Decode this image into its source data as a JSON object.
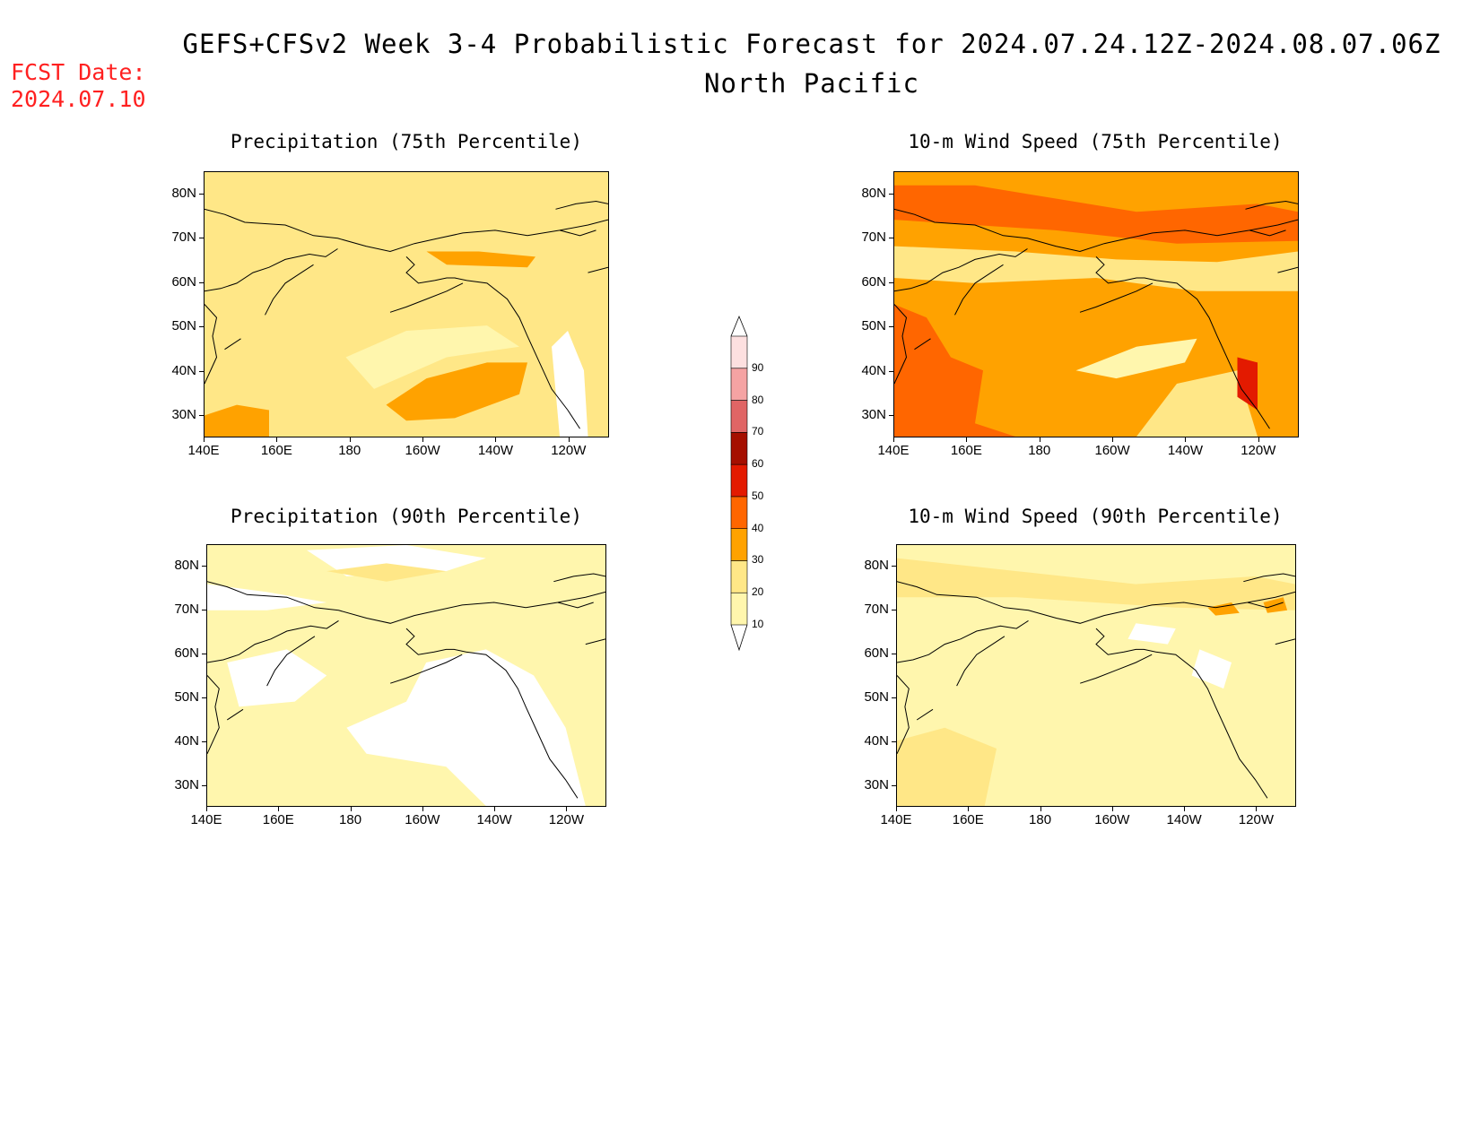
{
  "header": {
    "title": "GEFS+CFSv2 Week 3-4 Probabilistic Forecast for 2024.07.24.12Z-2024.08.07.06Z",
    "subtitle": "North Pacific",
    "fcst_label": "FCST Date:",
    "fcst_date": "2024.07.10"
  },
  "axes": {
    "lat_labels": [
      "80N",
      "70N",
      "60N",
      "50N",
      "40N",
      "30N"
    ],
    "lon_labels": [
      "140E",
      "160E",
      "180",
      "160W",
      "140W",
      "120W"
    ]
  },
  "panels": [
    {
      "title": "Precipitation (75th Percentile)",
      "base_color": "#ffe787",
      "level": 20
    },
    {
      "title": "10-m Wind Speed (75th Percentile)",
      "base_color": "#ffa200",
      "level": 30
    },
    {
      "title": "Precipitation (90th Percentile)",
      "base_color": "#fff6ad",
      "level": 10
    },
    {
      "title": "10-m Wind Speed (90th Percentile)",
      "base_color": "#fff6ad",
      "level": 10
    }
  ],
  "colorbar": {
    "levels": [
      "10",
      "20",
      "30",
      "40",
      "50",
      "60",
      "70",
      "80",
      "90"
    ],
    "colors": [
      "#fff6ad",
      "#ffe787",
      "#ffa200",
      "#ff6600",
      "#e31a00",
      "#a50f00",
      "#e06565",
      "#f5a3a3",
      "#fde0e0"
    ]
  }
}
